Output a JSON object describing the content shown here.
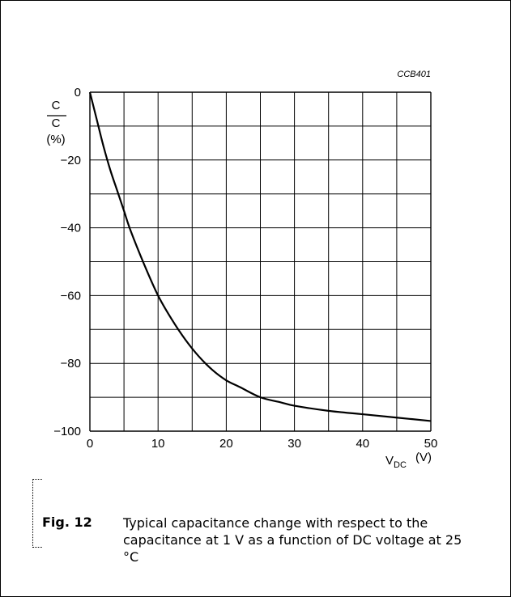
{
  "chart_data": {
    "type": "line",
    "code": "CCB401",
    "ylabel_top": "C",
    "ylabel_bottom": "C",
    "ylabel_unit": "(%)",
    "xlabel": "V",
    "xlabel_sub": "DC",
    "xlabel_unit": "(V)",
    "xlim": [
      0,
      50
    ],
    "ylim": [
      -100,
      0
    ],
    "xticks": [
      0,
      10,
      20,
      30,
      40,
      50
    ],
    "yticks": [
      0,
      -20,
      -40,
      -60,
      -80,
      -100
    ],
    "x_grid_step": 5,
    "y_grid_step": 10,
    "grid": true,
    "series": [
      {
        "color": "#000000",
        "x": [
          0,
          1,
          2,
          3,
          4,
          5,
          6,
          8,
          10,
          12,
          14,
          16,
          18,
          20,
          22,
          25,
          28,
          30,
          35,
          40,
          45,
          50
        ],
        "values": [
          0,
          -8,
          -16,
          -23,
          -29,
          -35,
          -41,
          -51,
          -60,
          -67,
          -73,
          -78,
          -82,
          -85,
          -87,
          -90,
          -91.5,
          -92.5,
          -94,
          -95,
          -96,
          -97
        ]
      }
    ]
  },
  "caption": {
    "label": "Fig. 12",
    "text": "Typical capacitance change with respect to the capacitance at 1 V as a function of DC voltage at 25 °C"
  }
}
